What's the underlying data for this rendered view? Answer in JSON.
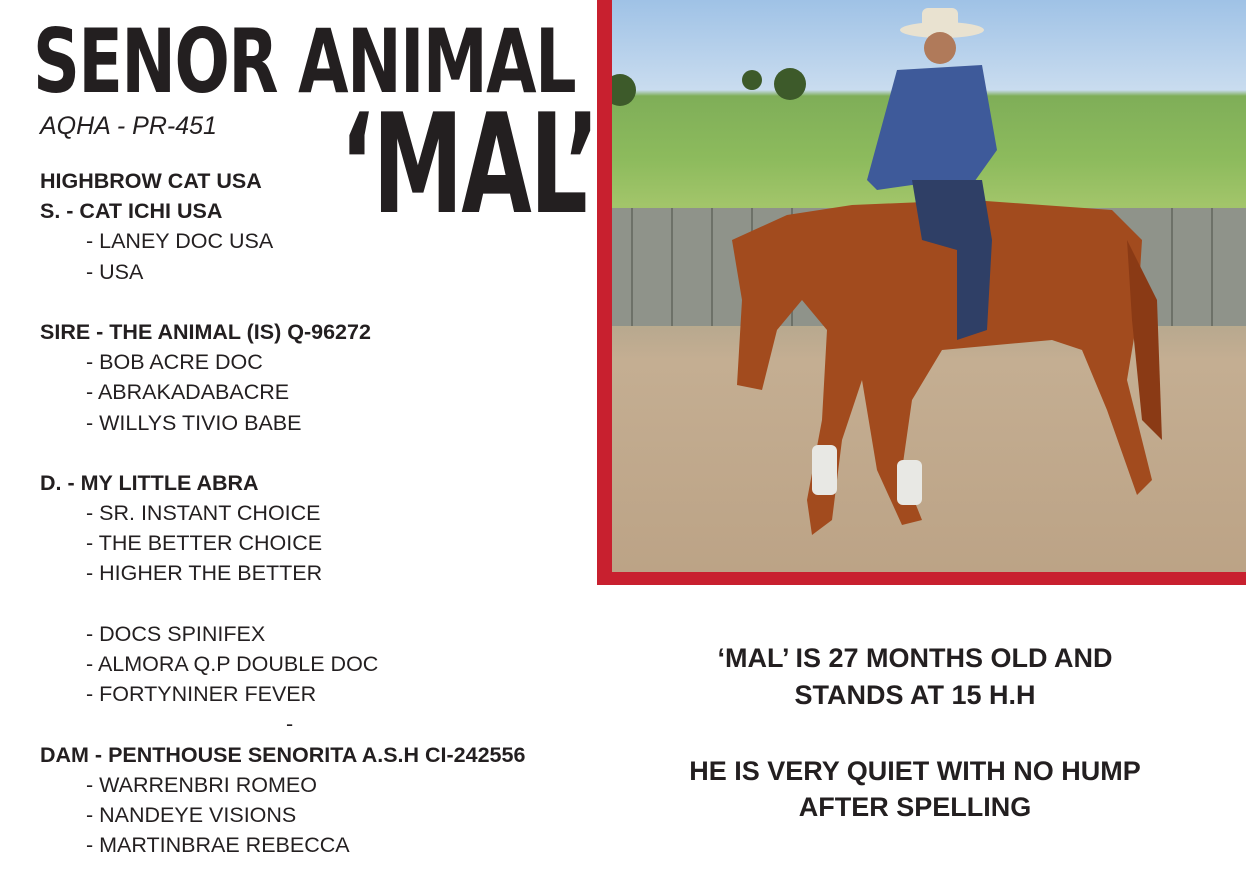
{
  "header": {
    "title": "SENOR ANIMAL",
    "nickname": "‘MAL’",
    "registration": "AQHA - PR-451"
  },
  "pedigree": [
    {
      "text": "HIGHBROW CAT USA",
      "style": "bold"
    },
    {
      "text": "S. - CAT ICHI USA",
      "style": "bold"
    },
    {
      "text": "-  LANEY DOC USA",
      "style": "indent"
    },
    {
      "text": "-  USA",
      "style": "indent"
    },
    {
      "text": "",
      "style": "blank"
    },
    {
      "text": "SIRE - THE ANIMAL (IS) Q-96272",
      "style": "bold"
    },
    {
      "text": "-  BOB ACRE DOC",
      "style": "indent"
    },
    {
      "text": "-  ABRAKADABACRE",
      "style": "indent"
    },
    {
      "text": "-  WILLYS TIVIO BABE",
      "style": "indent"
    },
    {
      "text": "",
      "style": "blank"
    },
    {
      "text": "D. - MY LITTLE ABRA",
      "style": "bold"
    },
    {
      "text": "-  SR. INSTANT CHOICE",
      "style": "indent"
    },
    {
      "text": "-  THE BETTER CHOICE",
      "style": "indent"
    },
    {
      "text": "-  HIGHER THE BETTER",
      "style": "indent"
    },
    {
      "text": "",
      "style": "blank"
    },
    {
      "text": "-  DOCS SPINIFEX",
      "style": "indent"
    },
    {
      "text": "-  ALMORA Q.P DOUBLE DOC",
      "style": "indent"
    },
    {
      "text": "-  FORTYNINER FEVER",
      "style": "indent"
    },
    {
      "text": "-",
      "style": "center"
    },
    {
      "text": "DAM - PENTHOUSE SENORITA A.S.H CI-242556",
      "style": "bold"
    },
    {
      "text": "-  WARRENBRI ROMEO",
      "style": "indent"
    },
    {
      "text": "-  NANDEYE VISIONS",
      "style": "indent"
    },
    {
      "text": "-  MARTINBRAE REBECCA",
      "style": "indent"
    }
  ],
  "description": {
    "line1": "‘MAL’ IS 27 MONTHS OLD AND",
    "line2": "STANDS AT 15 H.H",
    "line3": "HE IS VERY QUIET WITH NO HUMP",
    "line4": "AFTER SPELLING"
  },
  "colors": {
    "frame": "#c8202f",
    "text": "#231f20"
  }
}
